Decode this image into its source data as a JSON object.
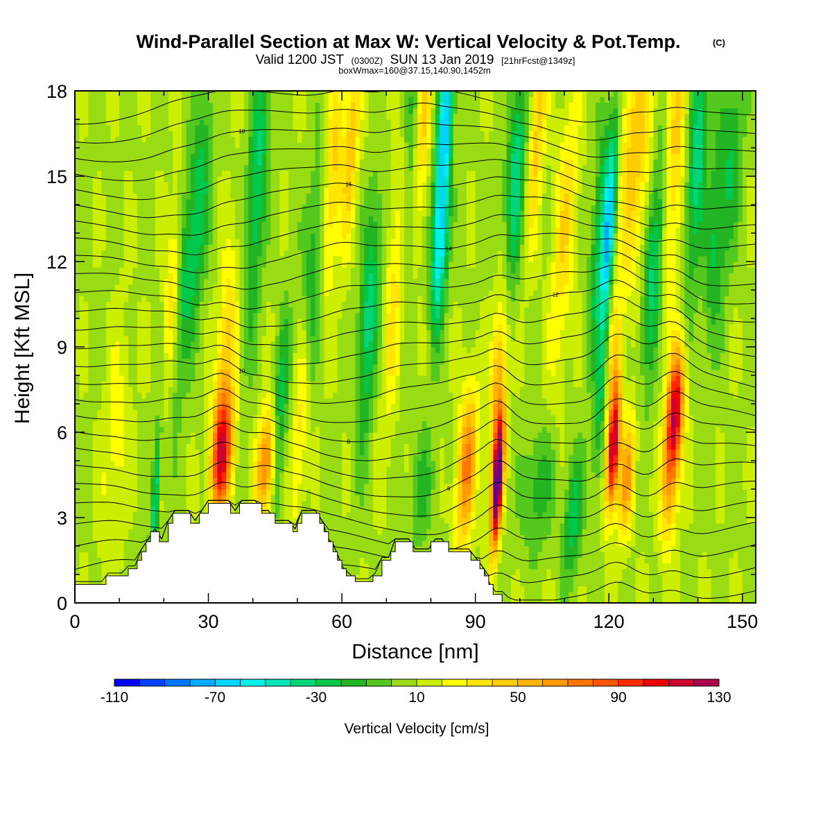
{
  "header": {
    "title": "Wind-Parallel Section at Max W: Vertical Velocity & Pot.Temp.",
    "title_mark": "(C)",
    "valid_prefix": "Valid 1200 JST",
    "valid_z": "(0300Z)",
    "valid_date": "SUN 13 Jan 2019",
    "forecast": "[21hrFcst@1349z]",
    "box_info": "boxWmax=160@37.15,140.90,1452m"
  },
  "chart_data": {
    "type": "heatmap",
    "xlabel": "Distance [nm]",
    "ylabel": "Height [Kft MSL]",
    "xlim": [
      0,
      153
    ],
    "ylim": [
      0,
      18
    ],
    "x_ticks": [
      "0",
      "30",
      "60",
      "90",
      "120",
      "150"
    ],
    "y_ticks": [
      "0",
      "3",
      "6",
      "9",
      "12",
      "15",
      "18"
    ],
    "colorbar": {
      "label": "Vertical Velocity [cm/s]",
      "ticks": [
        "-110",
        "-70",
        "-30",
        "10",
        "50",
        "90",
        "130"
      ],
      "min": -110,
      "max": 130,
      "step": 10,
      "colors": [
        "#0000ff",
        "#0044ff",
        "#0077ff",
        "#00aaff",
        "#00d4ff",
        "#00f0ee",
        "#00e6b4",
        "#00d678",
        "#00c84a",
        "#22b422",
        "#55c81e",
        "#99dc14",
        "#ccee00",
        "#ffff00",
        "#ffe600",
        "#ffcc00",
        "#ffb200",
        "#ff9900",
        "#ff7700",
        "#ff5500",
        "#ff2a00",
        "#ee0000",
        "#cc0033",
        "#aa004d",
        "#880066",
        "#660088"
      ]
    },
    "terrain_kft": [
      [
        0,
        0.65
      ],
      [
        7,
        0.65
      ],
      [
        7,
        0.95
      ],
      [
        12,
        0.95
      ],
      [
        12,
        1.2
      ],
      [
        14,
        1.2
      ],
      [
        14,
        1.5
      ],
      [
        15,
        1.5
      ],
      [
        15,
        1.8
      ],
      [
        16,
        1.8
      ],
      [
        16,
        2.15
      ],
      [
        17,
        2.15
      ],
      [
        17,
        2.5
      ],
      [
        19,
        2.5
      ],
      [
        19,
        2.15
      ],
      [
        21,
        2.15
      ],
      [
        21,
        2.8
      ],
      [
        22,
        2.8
      ],
      [
        22,
        3.15
      ],
      [
        26,
        3.15
      ],
      [
        26,
        2.8
      ],
      [
        28,
        2.8
      ],
      [
        28,
        3.15
      ],
      [
        30,
        3.15
      ],
      [
        30,
        3.5
      ],
      [
        35,
        3.5
      ],
      [
        35,
        3.15
      ],
      [
        37,
        3.15
      ],
      [
        37,
        3.5
      ],
      [
        42,
        3.5
      ],
      [
        42,
        3.15
      ],
      [
        45,
        3.15
      ],
      [
        45,
        2.8
      ],
      [
        49,
        2.8
      ],
      [
        49,
        2.5
      ],
      [
        50,
        2.5
      ],
      [
        50,
        2.8
      ],
      [
        51,
        2.8
      ],
      [
        51,
        3.15
      ],
      [
        55,
        3.15
      ],
      [
        55,
        2.8
      ],
      [
        56,
        2.8
      ],
      [
        56,
        2.5
      ],
      [
        57,
        2.5
      ],
      [
        57,
        2.15
      ],
      [
        58,
        2.15
      ],
      [
        58,
        1.8
      ],
      [
        59,
        1.8
      ],
      [
        59,
        1.5
      ],
      [
        60,
        1.5
      ],
      [
        60,
        1.2
      ],
      [
        61,
        1.2
      ],
      [
        61,
        0.95
      ],
      [
        63,
        0.95
      ],
      [
        63,
        0.75
      ],
      [
        67,
        0.75
      ],
      [
        67,
        0.95
      ],
      [
        69,
        0.95
      ],
      [
        69,
        1.5
      ],
      [
        71,
        1.5
      ],
      [
        71,
        1.8
      ],
      [
        72,
        1.8
      ],
      [
        72,
        2.15
      ],
      [
        76,
        2.15
      ],
      [
        76,
        1.8
      ],
      [
        80,
        1.8
      ],
      [
        80,
        2.15
      ],
      [
        84,
        2.15
      ],
      [
        84,
        1.8
      ],
      [
        89,
        1.8
      ],
      [
        89,
        1.5
      ],
      [
        91,
        1.5
      ],
      [
        91,
        1.2
      ],
      [
        92,
        1.2
      ],
      [
        92,
        0.95
      ],
      [
        93,
        0.95
      ],
      [
        93,
        0.65
      ],
      [
        94,
        0.65
      ],
      [
        94,
        0.3
      ],
      [
        96,
        0.3
      ]
    ],
    "w_field": {
      "base_cm_s": 8,
      "updrafts": [
        [
          33,
          5.2,
          1.7,
          1.6,
          95
        ],
        [
          34,
          9,
          1.5,
          2.6,
          35
        ],
        [
          43,
          4.9,
          1.5,
          1.3,
          70
        ],
        [
          51,
          7,
          1.2,
          3,
          35
        ],
        [
          58,
          15,
          1.3,
          3,
          35
        ],
        [
          62,
          16,
          1.2,
          2.5,
          40
        ],
        [
          72,
          11,
          1.5,
          3.5,
          30
        ],
        [
          78,
          17,
          1.3,
          3,
          45
        ],
        [
          88,
          4.8,
          1.5,
          2,
          65
        ],
        [
          95,
          4.2,
          0.8,
          1.6,
          145
        ],
        [
          95,
          7.5,
          1.2,
          2.6,
          50
        ],
        [
          110,
          13,
          1.8,
          3.5,
          30
        ],
        [
          121,
          5.4,
          0.9,
          1.5,
          110
        ],
        [
          121,
          8,
          1.2,
          2,
          30
        ],
        [
          124,
          4.4,
          1.2,
          1.5,
          55
        ],
        [
          126,
          16,
          2.8,
          3.5,
          38
        ],
        [
          134,
          5,
          1.4,
          2,
          60
        ],
        [
          135,
          7,
          1.3,
          1.5,
          75
        ],
        [
          135,
          16,
          1.5,
          4,
          35
        ],
        [
          9,
          5.5,
          2,
          3,
          18
        ],
        [
          22,
          11,
          1.2,
          2.5,
          35
        ],
        [
          104,
          17,
          1.3,
          3,
          38
        ]
      ],
      "downdrafts": [
        [
          18,
          3.5,
          0.6,
          2,
          -50
        ],
        [
          24,
          11,
          1.5,
          3,
          -30
        ],
        [
          28,
          14,
          1.5,
          3,
          -35
        ],
        [
          41,
          15,
          1.5,
          4,
          -40
        ],
        [
          46,
          6.5,
          1.2,
          2.5,
          -35
        ],
        [
          53,
          11,
          1.5,
          3,
          -35
        ],
        [
          66,
          10,
          1.5,
          3,
          -45
        ],
        [
          76,
          16,
          1.5,
          4,
          -30
        ],
        [
          83,
          16.5,
          1.2,
          3,
          -75
        ],
        [
          82,
          12,
          1.2,
          2,
          -45
        ],
        [
          99,
          15,
          1.5,
          3,
          -45
        ],
        [
          112,
          3,
          1.5,
          1.5,
          -35
        ],
        [
          118,
          13,
          1.3,
          3,
          -40
        ],
        [
          120,
          13,
          0.9,
          3,
          -70
        ],
        [
          130,
          12,
          1.5,
          3,
          -45
        ],
        [
          140,
          16,
          1.5,
          3.5,
          -45
        ],
        [
          144,
          13,
          1.5,
          3,
          -30
        ],
        [
          148,
          16,
          1.5,
          3,
          -25
        ],
        [
          104,
          4,
          2.5,
          1.5,
          -25
        ],
        [
          78,
          4,
          2,
          1.5,
          -20
        ],
        [
          118,
          6.5,
          1,
          2,
          -25
        ]
      ]
    },
    "theta_contour_labels": [
      "6",
      "8",
      "10",
      "12",
      "14",
      "16",
      "18",
      "20"
    ]
  }
}
